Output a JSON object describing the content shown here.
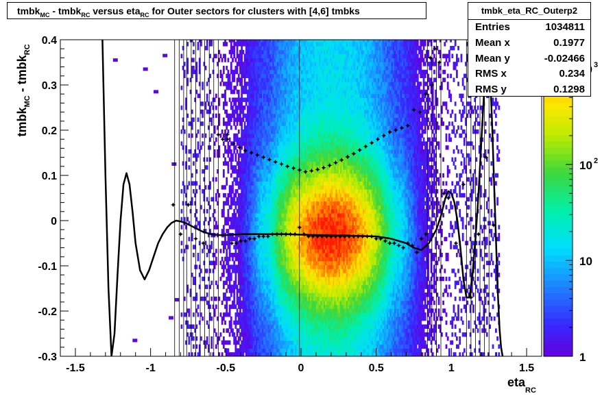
{
  "chart_data": {
    "type": "heatmap",
    "title_parts": [
      "tmbk",
      "MC",
      " - tmbk",
      "RC",
      " versus eta",
      "RC",
      "  for Outer sectors for clusters with [4,6] tmbks"
    ],
    "xlabel_parts": [
      "eta",
      "RC"
    ],
    "ylabel_parts": [
      "tmbk",
      "MC",
      " - tmbk",
      "RC"
    ],
    "xlim": [
      -1.6,
      1.6
    ],
    "ylim": [
      -0.3,
      0.4
    ],
    "x_ticks": [
      -1.5,
      -1,
      -0.5,
      0,
      0.5,
      1,
      1.5
    ],
    "x_tick_labels": [
      "-1.5",
      "-1",
      "-0.5",
      "0",
      "0.5",
      "1",
      "1.5"
    ],
    "y_ticks": [
      -0.3,
      -0.2,
      -0.1,
      0,
      0.1,
      0.2,
      0.3,
      0.4
    ],
    "y_tick_labels": [
      "-0.3",
      "-0.2",
      "-0.1",
      "0",
      "0.1",
      "0.2",
      "0.3",
      "0.4"
    ],
    "z_scale": "log",
    "z_range": [
      1,
      2000
    ],
    "z_ticks": [
      {
        "value": 1,
        "label": "1",
        "exp": ""
      },
      {
        "value": 10,
        "label": "10",
        "exp": ""
      },
      {
        "value": 100,
        "label": "10",
        "exp": "2"
      },
      {
        "value": 1000,
        "label": "10",
        "exp": "3"
      }
    ],
    "stats": {
      "name": "tmbk_eta_RC_Outerp2",
      "rows": [
        {
          "label": "Entries",
          "value": "1034811"
        },
        {
          "label": "Mean x",
          "value": "0.1977"
        },
        {
          "label": "Mean y",
          "value": "-0.02466"
        },
        {
          "label": "RMS x",
          "value": "0.234"
        },
        {
          "label": "RMS y",
          "value": "0.1298"
        }
      ]
    },
    "profile_series": {
      "name": "profile",
      "x": [
        -0.85,
        -0.8,
        -0.75,
        -0.7,
        -0.65,
        -0.55,
        -0.52,
        -0.49,
        -0.46,
        -0.43,
        -0.4,
        -0.37,
        -0.34,
        -0.31,
        -0.28,
        -0.25,
        -0.22,
        -0.19,
        -0.16,
        -0.13,
        -0.1,
        -0.07,
        -0.04,
        -0.01,
        0.02,
        0.05,
        0.08,
        0.11,
        0.14,
        0.17,
        0.2,
        0.23,
        0.26,
        0.29,
        0.32,
        0.35,
        0.38,
        0.41,
        0.44,
        0.47,
        0.5,
        0.53,
        0.56,
        0.59,
        0.62,
        0.65,
        0.68,
        0.71,
        0.74,
        0.77,
        0.8,
        0.83,
        0.86,
        0.89,
        0.92,
        0.95,
        0.98,
        1.03,
        1.08,
        1.13,
        1.18,
        1.23,
        1.28
      ],
      "y": [
        0.035,
        -0.03,
        0.035,
        -0.04,
        -0.05,
        0.19,
        0.18,
        0.19,
        -0.05,
        -0.05,
        -0.045,
        -0.045,
        -0.04,
        -0.04,
        -0.035,
        -0.035,
        -0.035,
        -0.03,
        -0.03,
        -0.03,
        -0.03,
        -0.03,
        -0.03,
        -0.015,
        -0.03,
        -0.035,
        -0.035,
        -0.035,
        -0.035,
        -0.035,
        -0.035,
        -0.035,
        -0.035,
        -0.035,
        -0.035,
        -0.035,
        -0.035,
        -0.035,
        -0.035,
        -0.035,
        -0.04,
        -0.04,
        -0.045,
        -0.05,
        -0.05,
        -0.055,
        -0.06,
        -0.05,
        -0.055,
        -0.07,
        -0.04,
        -0.03,
        0.36,
        0.38,
        0.35,
        0.06,
        0.05,
        -0.05,
        0.08,
        -0.17,
        -0.03,
        0.14,
        -0.01
      ]
    },
    "upper_series": {
      "name": "upper",
      "x": [
        -0.49,
        -0.45,
        -0.41,
        -0.37,
        -0.33,
        -0.29,
        -0.25,
        -0.21,
        -0.17,
        -0.13,
        -0.09,
        -0.05,
        -0.01,
        0.03,
        0.07,
        0.11,
        0.15,
        0.19,
        0.23,
        0.27,
        0.31,
        0.35,
        0.39,
        0.43,
        0.47,
        0.51,
        0.55,
        0.59,
        0.63,
        0.67,
        0.71,
        0.75,
        0.79,
        0.83,
        0.87
      ],
      "y": [
        0.18,
        0.17,
        0.162,
        0.155,
        0.15,
        0.145,
        0.14,
        0.135,
        0.13,
        0.125,
        0.12,
        0.116,
        0.112,
        0.108,
        0.11,
        0.113,
        0.117,
        0.122,
        0.128,
        0.134,
        0.141,
        0.148,
        0.156,
        0.164,
        0.172,
        0.18,
        0.188,
        0.196,
        0.2,
        0.205,
        0.21,
        0.245,
        0.24,
        0.28,
        0.3
      ]
    },
    "fit_curve": {
      "name": "fit",
      "x": [
        -1.32,
        -1.3,
        -1.28,
        -1.26,
        -1.24,
        -1.22,
        -1.2,
        -1.18,
        -1.16,
        -1.14,
        -1.12,
        -1.1,
        -1.07,
        -1.04,
        -1.01,
        -0.98,
        -0.95,
        -0.92,
        -0.89,
        -0.86,
        -0.83,
        -0.8,
        -0.77,
        -0.74,
        -0.71,
        -0.68,
        -0.65,
        -0.6,
        -0.55,
        -0.5,
        -0.4,
        -0.3,
        -0.2,
        -0.1,
        0,
        0.1,
        0.2,
        0.3,
        0.4,
        0.5,
        0.6,
        0.7,
        0.75,
        0.8,
        0.85,
        0.9,
        0.93,
        0.96,
        0.98,
        1.0,
        1.02,
        1.04,
        1.06,
        1.08,
        1.1,
        1.12,
        1.14,
        1.16,
        1.18,
        1.2,
        1.22,
        1.24,
        1.26,
        1.27,
        1.28,
        1.29,
        1.3,
        1.31,
        1.32,
        1.33,
        1.34
      ],
      "y": [
        0.4,
        0.1,
        -0.15,
        -0.3,
        -0.25,
        -0.12,
        0.0,
        0.08,
        0.105,
        0.08,
        0.02,
        -0.05,
        -0.11,
        -0.13,
        -0.11,
        -0.08,
        -0.05,
        -0.03,
        -0.015,
        -0.005,
        0.0,
        -0.002,
        -0.005,
        -0.01,
        -0.015,
        -0.02,
        -0.025,
        -0.03,
        -0.032,
        -0.032,
        -0.03,
        -0.03,
        -0.03,
        -0.03,
        -0.031,
        -0.032,
        -0.033,
        -0.033,
        -0.034,
        -0.035,
        -0.04,
        -0.05,
        -0.06,
        -0.065,
        -0.05,
        -0.02,
        0.01,
        0.05,
        0.065,
        0.06,
        0.04,
        0.0,
        -0.06,
        -0.13,
        -0.17,
        -0.17,
        -0.12,
        -0.04,
        0.06,
        0.18,
        0.3,
        0.36,
        0.3,
        0.22,
        0.12,
        0.02,
        -0.08,
        -0.17,
        -0.24,
        -0.28,
        -0.3
      ]
    }
  }
}
